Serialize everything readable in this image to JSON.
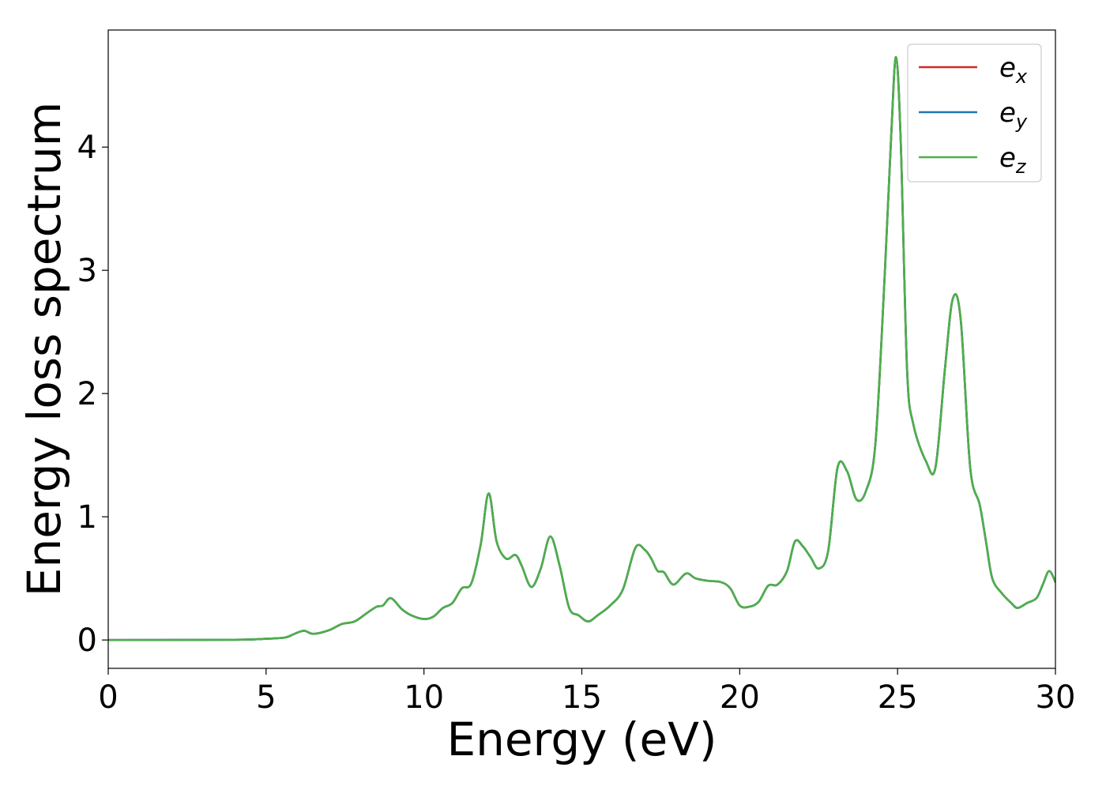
{
  "chart_data": {
    "type": "line",
    "title": "",
    "xlabel": "Energy (eV)",
    "ylabel": "Energy loss spectrum",
    "xlim": [
      0,
      30
    ],
    "ylim": [
      -0.23,
      4.95
    ],
    "xticks": [
      "0",
      "5",
      "10",
      "15",
      "20",
      "25",
      "30"
    ],
    "yticks": [
      "0",
      "1",
      "2",
      "3",
      "4"
    ],
    "grid": false,
    "legend_position": "top-right",
    "colors": {
      "e_x": "#d62728",
      "e_y": "#1f77b4",
      "e_z": "#4daf4a"
    },
    "legend": [
      {
        "key": "e_x",
        "base": "e",
        "sub": "x"
      },
      {
        "key": "e_y",
        "base": "e",
        "sub": "y"
      },
      {
        "key": "e_z",
        "base": "e",
        "sub": "z"
      }
    ],
    "x": [
      0,
      4.0,
      5.0,
      5.6,
      5.9,
      6.2,
      6.5,
      7.0,
      7.4,
      7.8,
      8.2,
      8.5,
      8.7,
      8.95,
      9.3,
      9.6,
      10.0,
      10.3,
      10.6,
      10.9,
      11.2,
      11.5,
      11.8,
      12.05,
      12.3,
      12.6,
      12.9,
      13.1,
      13.4,
      13.7,
      14.0,
      14.3,
      14.6,
      14.9,
      15.2,
      15.5,
      15.9,
      16.3,
      16.7,
      17.0,
      17.2,
      17.4,
      17.6,
      17.9,
      18.3,
      18.6,
      19.0,
      19.4,
      19.7,
      20.0,
      20.3,
      20.6,
      20.9,
      21.2,
      21.5,
      21.75,
      22.0,
      22.25,
      22.5,
      22.8,
      23.1,
      23.4,
      23.7,
      24.0,
      24.3,
      24.6,
      24.8,
      24.95,
      25.1,
      25.3,
      25.5,
      25.9,
      26.2,
      26.5,
      26.75,
      27.0,
      27.3,
      27.6,
      27.8,
      28.0,
      28.3,
      28.6,
      28.8,
      29.1,
      29.4,
      29.6,
      29.8,
      30.0
    ],
    "series": [
      {
        "key": "e_x",
        "values": [
          0,
          0.002,
          0.01,
          0.02,
          0.05,
          0.075,
          0.05,
          0.08,
          0.13,
          0.15,
          0.22,
          0.27,
          0.28,
          0.34,
          0.25,
          0.2,
          0.17,
          0.19,
          0.26,
          0.3,
          0.42,
          0.46,
          0.78,
          1.19,
          0.8,
          0.66,
          0.69,
          0.6,
          0.43,
          0.58,
          0.84,
          0.6,
          0.26,
          0.2,
          0.15,
          0.2,
          0.28,
          0.41,
          0.75,
          0.73,
          0.66,
          0.56,
          0.55,
          0.45,
          0.54,
          0.5,
          0.48,
          0.47,
          0.42,
          0.28,
          0.27,
          0.31,
          0.44,
          0.45,
          0.56,
          0.8,
          0.76,
          0.67,
          0.58,
          0.72,
          1.4,
          1.37,
          1.14,
          1.21,
          1.6,
          3.0,
          4.1,
          4.73,
          4.05,
          2.2,
          1.75,
          1.45,
          1.4,
          2.2,
          2.77,
          2.6,
          1.4,
          1.1,
          0.8,
          0.5,
          0.38,
          0.3,
          0.26,
          0.3,
          0.34,
          0.45,
          0.56,
          0.47
        ]
      },
      {
        "key": "e_y",
        "values": [
          0,
          0.002,
          0.01,
          0.02,
          0.05,
          0.075,
          0.05,
          0.08,
          0.13,
          0.15,
          0.22,
          0.27,
          0.28,
          0.34,
          0.25,
          0.2,
          0.17,
          0.19,
          0.26,
          0.3,
          0.42,
          0.46,
          0.78,
          1.19,
          0.8,
          0.66,
          0.69,
          0.6,
          0.43,
          0.58,
          0.84,
          0.6,
          0.26,
          0.2,
          0.15,
          0.2,
          0.28,
          0.41,
          0.75,
          0.73,
          0.66,
          0.56,
          0.55,
          0.45,
          0.54,
          0.5,
          0.48,
          0.47,
          0.42,
          0.28,
          0.27,
          0.31,
          0.44,
          0.45,
          0.56,
          0.8,
          0.76,
          0.67,
          0.58,
          0.72,
          1.4,
          1.37,
          1.14,
          1.21,
          1.6,
          3.0,
          4.1,
          4.73,
          4.05,
          2.2,
          1.75,
          1.45,
          1.4,
          2.2,
          2.77,
          2.6,
          1.4,
          1.1,
          0.8,
          0.5,
          0.38,
          0.3,
          0.26,
          0.3,
          0.34,
          0.45,
          0.56,
          0.47
        ]
      },
      {
        "key": "e_z",
        "values": [
          0,
          0.002,
          0.01,
          0.02,
          0.05,
          0.075,
          0.05,
          0.08,
          0.13,
          0.15,
          0.22,
          0.27,
          0.28,
          0.34,
          0.25,
          0.2,
          0.17,
          0.19,
          0.26,
          0.3,
          0.42,
          0.46,
          0.78,
          1.19,
          0.8,
          0.66,
          0.69,
          0.6,
          0.43,
          0.58,
          0.84,
          0.6,
          0.26,
          0.2,
          0.15,
          0.2,
          0.28,
          0.41,
          0.75,
          0.73,
          0.66,
          0.56,
          0.55,
          0.45,
          0.54,
          0.5,
          0.48,
          0.47,
          0.42,
          0.28,
          0.27,
          0.31,
          0.44,
          0.45,
          0.56,
          0.8,
          0.76,
          0.67,
          0.58,
          0.72,
          1.4,
          1.37,
          1.14,
          1.21,
          1.6,
          3.0,
          4.1,
          4.73,
          4.05,
          2.2,
          1.75,
          1.45,
          1.4,
          2.2,
          2.77,
          2.6,
          1.4,
          1.1,
          0.8,
          0.5,
          0.38,
          0.3,
          0.26,
          0.3,
          0.34,
          0.45,
          0.56,
          0.47
        ]
      }
    ]
  }
}
